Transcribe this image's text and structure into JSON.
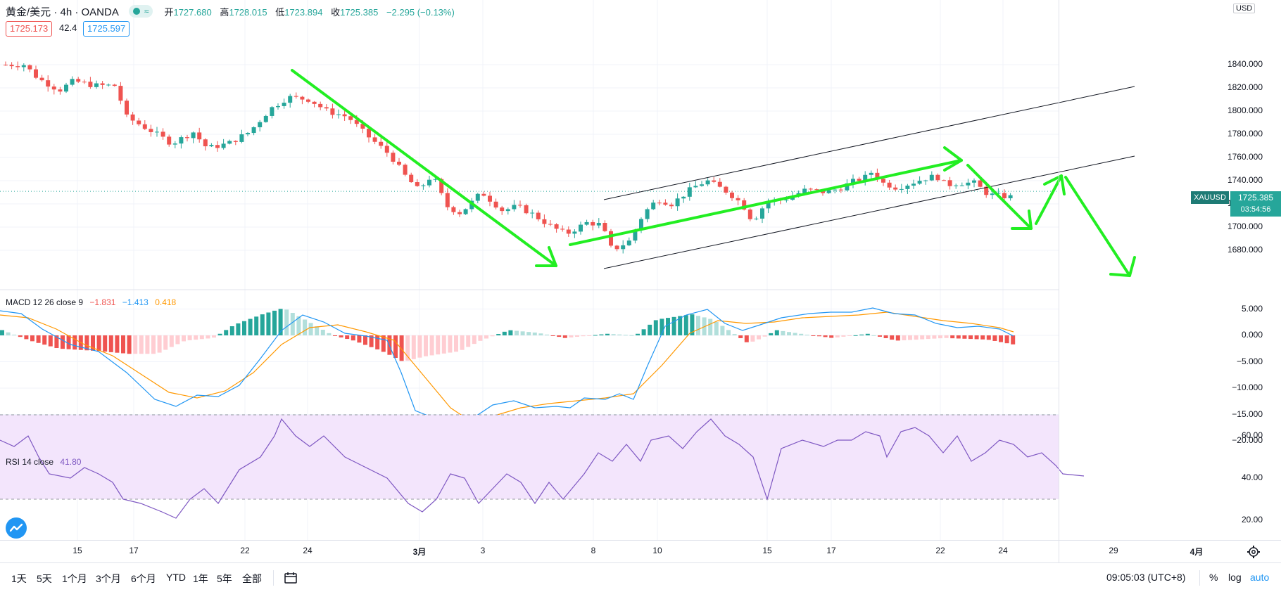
{
  "header": {
    "symbol": "黄金/美元 · 4h · OANDA",
    "status_glyph": "≈",
    "open_label": "开",
    "open": "1727.680",
    "high_label": "高",
    "high": "1728.015",
    "low_label": "低",
    "low": "1723.894",
    "close_label": "收",
    "close": "1725.385",
    "change": "−2.295 (−0.13%)",
    "bid": "1725.173",
    "spread": "42.4",
    "ask": "1725.597"
  },
  "price_axis": {
    "currency": "USD",
    "ticks": [
      "1840.000",
      "1820.000",
      "1800.000",
      "1780.000",
      "1760.000",
      "1740.000",
      "1720.000",
      "1700.000",
      "1680.000"
    ],
    "top_cut": "18",
    "last_symbol": "XAUUSD",
    "last_price": "1725.385",
    "countdown": "03:54:56"
  },
  "macd": {
    "label": "MACD 12 26 close 9",
    "v1": "−1.831",
    "v2": "−1.413",
    "v3": "0.418",
    "ticks": [
      "5.000",
      "0.000",
      "−5.000",
      "−10.000",
      "−15.000",
      "−20.000"
    ]
  },
  "rsi": {
    "label": "RSI 14 close",
    "value": "41.80",
    "ticks": [
      "60.00",
      "40.00",
      "20.00"
    ]
  },
  "time_axis": [
    "15",
    "17",
    "22",
    "24",
    "3月",
    "3",
    "8",
    "10",
    "15",
    "17",
    "22",
    "24",
    "29",
    "4月"
  ],
  "ranges": [
    "1天",
    "5天",
    "1个月",
    "3个月",
    "6个月",
    "YTD",
    "1年",
    "5年",
    "全部"
  ],
  "bottom": {
    "clock": "09:05:03 (UTC+8)",
    "percent": "%",
    "log": "log",
    "auto": "auto"
  },
  "colors": {
    "up": "#26a69a",
    "down": "#ef5350",
    "arrows": "#22ee22",
    "macd_line": "#2196f3",
    "signal_line": "#ff9800",
    "rsi_line": "#7e57c2",
    "rsi_band": "#f3e5fc"
  }
}
